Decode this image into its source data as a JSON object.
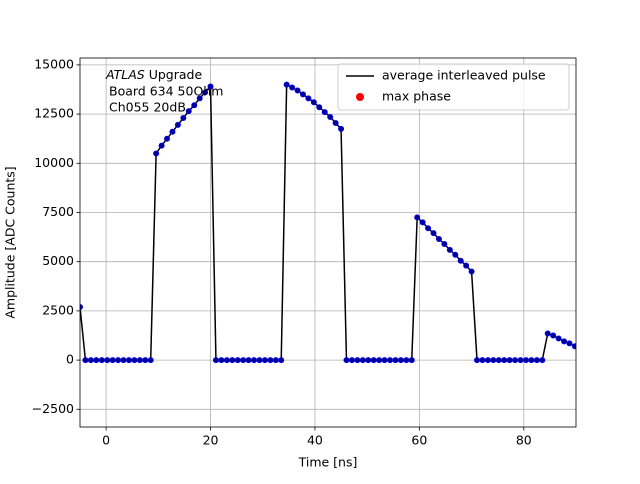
{
  "chart_data": {
    "type": "line",
    "xlabel": "Time [ns]",
    "ylabel": "Amplitude [ADC Counts]",
    "annotation": {
      "italic": "ATLAS",
      "rest": " Upgrade",
      "lines": [
        "Board 634 50Ohm",
        "Ch055 20dB"
      ]
    },
    "xlim": [
      -5,
      90
    ],
    "ylim": [
      -3400,
      15350
    ],
    "xticks": [
      0,
      20,
      40,
      60,
      80
    ],
    "yticks": [
      {
        "value": -2500,
        "label": "−2500"
      },
      0,
      2500,
      5000,
      7500,
      10000,
      12500,
      15000
    ],
    "grid": true,
    "legend_position": "upper right",
    "legend": [
      {
        "name": "average interleaved pulse",
        "color": "#000000",
        "style": "line"
      },
      {
        "name": "max phase",
        "color": "#ff0000",
        "style": "marker"
      }
    ],
    "x": [
      -5,
      -3.96,
      -2.92,
      -1.88,
      -0.83,
      0.21,
      1.25,
      2.29,
      3.33,
      4.38,
      5.42,
      6.46,
      7.5,
      8.54,
      9.58,
      10.63,
      11.67,
      12.71,
      13.75,
      14.79,
      15.83,
      16.88,
      17.92,
      18.96,
      20,
      21.04,
      22.08,
      23.13,
      24.17,
      25.21,
      26.25,
      27.29,
      28.33,
      29.38,
      30.42,
      31.46,
      32.5,
      33.54,
      34.58,
      35.63,
      36.67,
      37.71,
      38.75,
      39.79,
      40.83,
      41.88,
      42.92,
      43.96,
      45,
      46.04,
      47.08,
      48.13,
      49.17,
      50.21,
      51.25,
      52.29,
      53.33,
      54.38,
      55.42,
      56.46,
      57.5,
      58.54,
      59.58,
      60.63,
      61.67,
      62.71,
      63.75,
      64.79,
      65.83,
      66.88,
      67.92,
      68.96,
      70,
      71.04,
      72.08,
      73.13,
      74.17,
      75.21,
      76.25,
      77.29,
      78.33,
      79.38,
      80.42,
      81.46,
      82.5,
      83.54,
      84.58,
      85.63,
      86.67,
      87.71,
      88.75,
      89.79
    ],
    "series": [
      {
        "color": "#000000",
        "marker_color": "#00008b",
        "marker_edge": "#0000ff",
        "values": [
          2700,
          0,
          0,
          0,
          0,
          0,
          0,
          0,
          0,
          0,
          0,
          0,
          0,
          0,
          10500,
          10900,
          11250,
          11600,
          11950,
          12300,
          12650,
          12950,
          13300,
          13600,
          13900,
          0,
          0,
          0,
          0,
          0,
          0,
          0,
          0,
          0,
          0,
          0,
          0,
          0,
          14000,
          13850,
          13700,
          13500,
          13300,
          13100,
          12850,
          12600,
          12350,
          12050,
          11750,
          0,
          0,
          0,
          0,
          0,
          0,
          0,
          0,
          0,
          0,
          0,
          0,
          0,
          7250,
          7000,
          6700,
          6450,
          6150,
          5900,
          5600,
          5350,
          5050,
          4800,
          4500,
          0,
          0,
          0,
          0,
          0,
          0,
          0,
          0,
          0,
          0,
          0,
          0,
          0,
          1350,
          1250,
          1100,
          950,
          850,
          700
        ]
      }
    ]
  }
}
